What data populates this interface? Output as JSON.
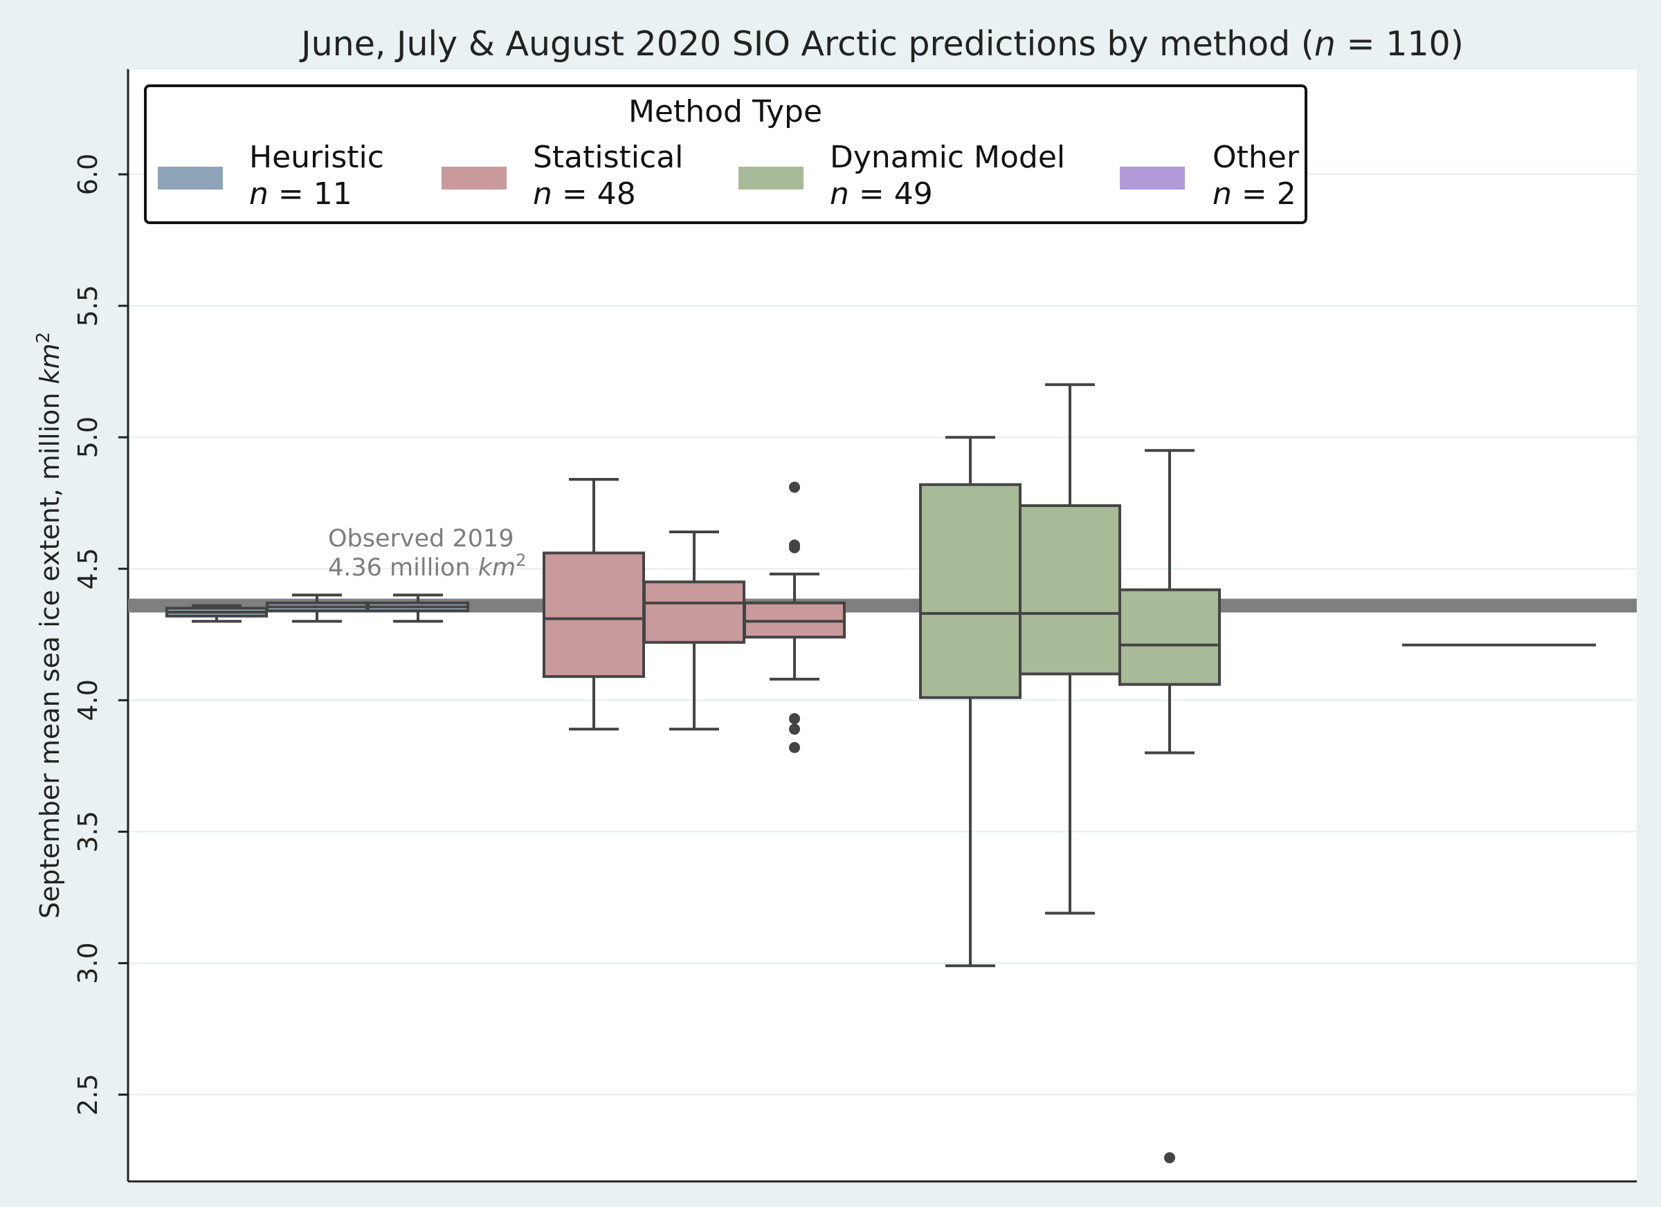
{
  "chart_data": {
    "type": "box",
    "title_prefix": "June, July & August 2020 SIO Arctic predictions by method (",
    "title_var": "n",
    "title_eq": " = 110)",
    "ylabel_prefix": "September mean sea ice extent, million ",
    "ylabel_unit": "km",
    "ylabel_sup": "2",
    "ylim": [
      2.17,
      6.4
    ],
    "yticks": [
      "2.5",
      "3.0",
      "3.5",
      "4.0",
      "4.5",
      "5.0",
      "5.5",
      "6.0"
    ],
    "grid": true,
    "legend": {
      "title": "Method Type",
      "placement": "top-left",
      "entries": [
        {
          "label": "Heuristic",
          "n_var": "n",
          "n_text": " = 11",
          "color": "#8fa4b8"
        },
        {
          "label": "Statistical",
          "n_var": "n",
          "n_text": " = 48",
          "color": "#c99a9c"
        },
        {
          "label": "Dynamic Model",
          "n_var": "n",
          "n_text": " = 49",
          "color": "#a9ba98"
        },
        {
          "label": "Other",
          "n_var": "n",
          "n_text": " = 2",
          "color": "#b09ad8"
        }
      ]
    },
    "reference_line": {
      "value": 4.36,
      "label_line1": "Observed 2019",
      "label_line2_prefix": "4.36 million ",
      "label_unit": "km",
      "label_sup": "2",
      "color": "#7f7f7f"
    },
    "boxes": [
      {
        "group": "Heuristic",
        "month": "June",
        "color": "#8fa4b8",
        "whisker_low": 4.3,
        "q1": 4.32,
        "median": 4.335,
        "q3": 4.35,
        "whisker_high": 4.36,
        "outliers": []
      },
      {
        "group": "Heuristic",
        "month": "July",
        "color": "#8fa4b8",
        "whisker_low": 4.3,
        "q1": 4.34,
        "median": 4.355,
        "q3": 4.37,
        "whisker_high": 4.4,
        "outliers": []
      },
      {
        "group": "Heuristic",
        "month": "August",
        "color": "#8fa4b8",
        "whisker_low": 4.3,
        "q1": 4.34,
        "median": 4.355,
        "q3": 4.37,
        "whisker_high": 4.4,
        "outliers": []
      },
      {
        "group": "Statistical",
        "month": "June",
        "color": "#c99a9c",
        "whisker_low": 3.89,
        "q1": 4.09,
        "median": 4.31,
        "q3": 4.56,
        "whisker_high": 4.84,
        "outliers": []
      },
      {
        "group": "Statistical",
        "month": "July",
        "color": "#c99a9c",
        "whisker_low": 3.89,
        "q1": 4.22,
        "median": 4.37,
        "q3": 4.45,
        "whisker_high": 4.64,
        "outliers": []
      },
      {
        "group": "Statistical",
        "month": "August",
        "color": "#c99a9c",
        "whisker_low": 4.08,
        "q1": 4.24,
        "median": 4.3,
        "q3": 4.37,
        "whisker_high": 4.48,
        "outliers": [
          4.81,
          4.59,
          4.58,
          3.93,
          3.89,
          3.82
        ]
      },
      {
        "group": "Dynamic Model",
        "month": "June",
        "color": "#a9ba98",
        "whisker_low": 2.99,
        "q1": 4.01,
        "median": 4.33,
        "q3": 4.82,
        "whisker_high": 5.0,
        "outliers": []
      },
      {
        "group": "Dynamic Model",
        "month": "July",
        "color": "#a9ba98",
        "whisker_low": 3.19,
        "q1": 4.1,
        "median": 4.33,
        "q3": 4.74,
        "whisker_high": 5.2,
        "outliers": []
      },
      {
        "group": "Dynamic Model",
        "month": "August",
        "color": "#a9ba98",
        "whisker_low": 3.8,
        "q1": 4.06,
        "median": 4.21,
        "q3": 4.42,
        "whisker_high": 4.95,
        "outliers": [
          2.26
        ]
      },
      {
        "group": "Other",
        "month": "August",
        "color": "#b09ad8",
        "whisker_low": 4.21,
        "q1": 4.21,
        "median": 4.21,
        "q3": 4.21,
        "whisker_high": 4.21,
        "outliers": []
      }
    ]
  }
}
